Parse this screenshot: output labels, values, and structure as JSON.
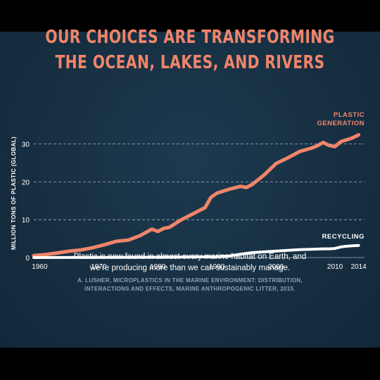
{
  "title_lines": [
    "OUR CHOICES ARE TRANSFORMING",
    "THE OCEAN, LAKES, AND RIVERS"
  ],
  "caption_lines": [
    "Plastic is now found in almost every marine habitat on Earth, and",
    "we’re producing more than we can sustainably manage."
  ],
  "source_lines": [
    "A. LUSHER, MICROPLASTICS IN THE MARINE ENVIRONMENT: DISTRIBUTION,",
    "INTERACTIONS AND EFFECTS, MARINE ANTHROPOGENIC LITTER, 2015."
  ],
  "colors": {
    "background": "#172f42",
    "accent": "#f0856a",
    "recycling": "#ffffff",
    "axis_text": "#ffffff"
  },
  "chart_data": {
    "type": "line",
    "ylabel": "MILLION TONS OF PLASTIC (GLOBAL)",
    "xlabel": "",
    "xlim": [
      1959,
      2015
    ],
    "ylim": [
      0,
      34
    ],
    "x_ticks": [
      1960,
      1970,
      1980,
      1990,
      2000,
      2010,
      2014
    ],
    "y_ticks": [
      0,
      10,
      20,
      30
    ],
    "grid": "horizontal dashed",
    "series": [
      {
        "name": "PLASTIC GENERATION",
        "name_lines": [
          "PLASTIC",
          "GENERATION"
        ],
        "color": "#f0856a",
        "x": [
          1959,
          1961,
          1963,
          1965,
          1967,
          1969,
          1971,
          1973,
          1975,
          1977,
          1979,
          1980,
          1981,
          1982,
          1984,
          1986,
          1988,
          1989,
          1990,
          1992,
          1994,
          1995,
          1996,
          1998,
          2000,
          2002,
          2004,
          2006,
          2007,
          2008,
          2009,
          2010,
          2011,
          2012,
          2013,
          2014
        ],
        "y": [
          0.5,
          0.8,
          1.2,
          1.7,
          2.0,
          2.6,
          3.4,
          4.3,
          4.6,
          5.8,
          7.5,
          6.9,
          7.7,
          8.0,
          10.0,
          11.6,
          13.2,
          15.9,
          17.0,
          18.0,
          18.8,
          18.5,
          19.3,
          21.8,
          24.8,
          26.3,
          28.0,
          28.9,
          29.5,
          30.4,
          29.6,
          29.3,
          30.6,
          31.1,
          31.6,
          32.4
        ]
      },
      {
        "name": "RECYCLING",
        "name_lines": [
          "RECYCLING"
        ],
        "color": "#ffffff",
        "x": [
          1959,
          1970,
          1980,
          1990,
          1992,
          1994,
          1996,
          1998,
          2000,
          2002,
          2004,
          2006,
          2008,
          2009,
          2010,
          2011,
          2012,
          2013,
          2014
        ],
        "y": [
          0.0,
          0.05,
          0.1,
          0.2,
          0.4,
          0.9,
          1.3,
          1.5,
          1.7,
          1.9,
          2.1,
          2.2,
          2.3,
          2.3,
          2.4,
          2.8,
          3.0,
          3.1,
          3.2
        ]
      }
    ]
  }
}
